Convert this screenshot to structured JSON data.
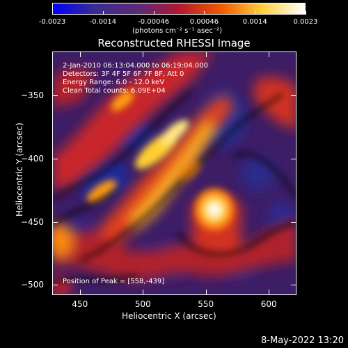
{
  "chart_data": {
    "type": "heatmap",
    "title": "Reconstructed RHESSI Image",
    "xlabel": "Heliocentric X (arcsec)",
    "ylabel": "Heliocentric Y (arcsec)",
    "xlim": [
      428,
      622
    ],
    "ylim": [
      -508,
      -315
    ],
    "x_ticks": [
      450,
      500,
      550,
      600
    ],
    "y_ticks": [
      -350,
      -400,
      -450,
      -500
    ],
    "colorbar": {
      "ticks": [
        "-0.0023",
        "-0.0014",
        "-0.00046",
        "0.00046",
        "0.0014",
        "0.0023"
      ],
      "unit": "(photons cm⁻² s⁻¹ asec⁻²)",
      "colors": [
        "#0000ff",
        "#3b2d8f",
        "#5a2a7a",
        "#b01830",
        "#f05a00",
        "#ffd040",
        "#ffffff"
      ]
    },
    "annotations": [
      "2-Jan-2010 06:13:04.000 to 06:19:04.000",
      "Detectors: 3F 4F 5F 6F 7F 8F, Att 0",
      "Energy Range: 6.0 - 12.0 keV",
      "Clean      Total counts: 6.09E+04"
    ],
    "peak_label": "Position of Peak = [558,-439]",
    "peak_position": [
      558,
      -439
    ]
  },
  "timestamp": "8-May-2022 13:20"
}
